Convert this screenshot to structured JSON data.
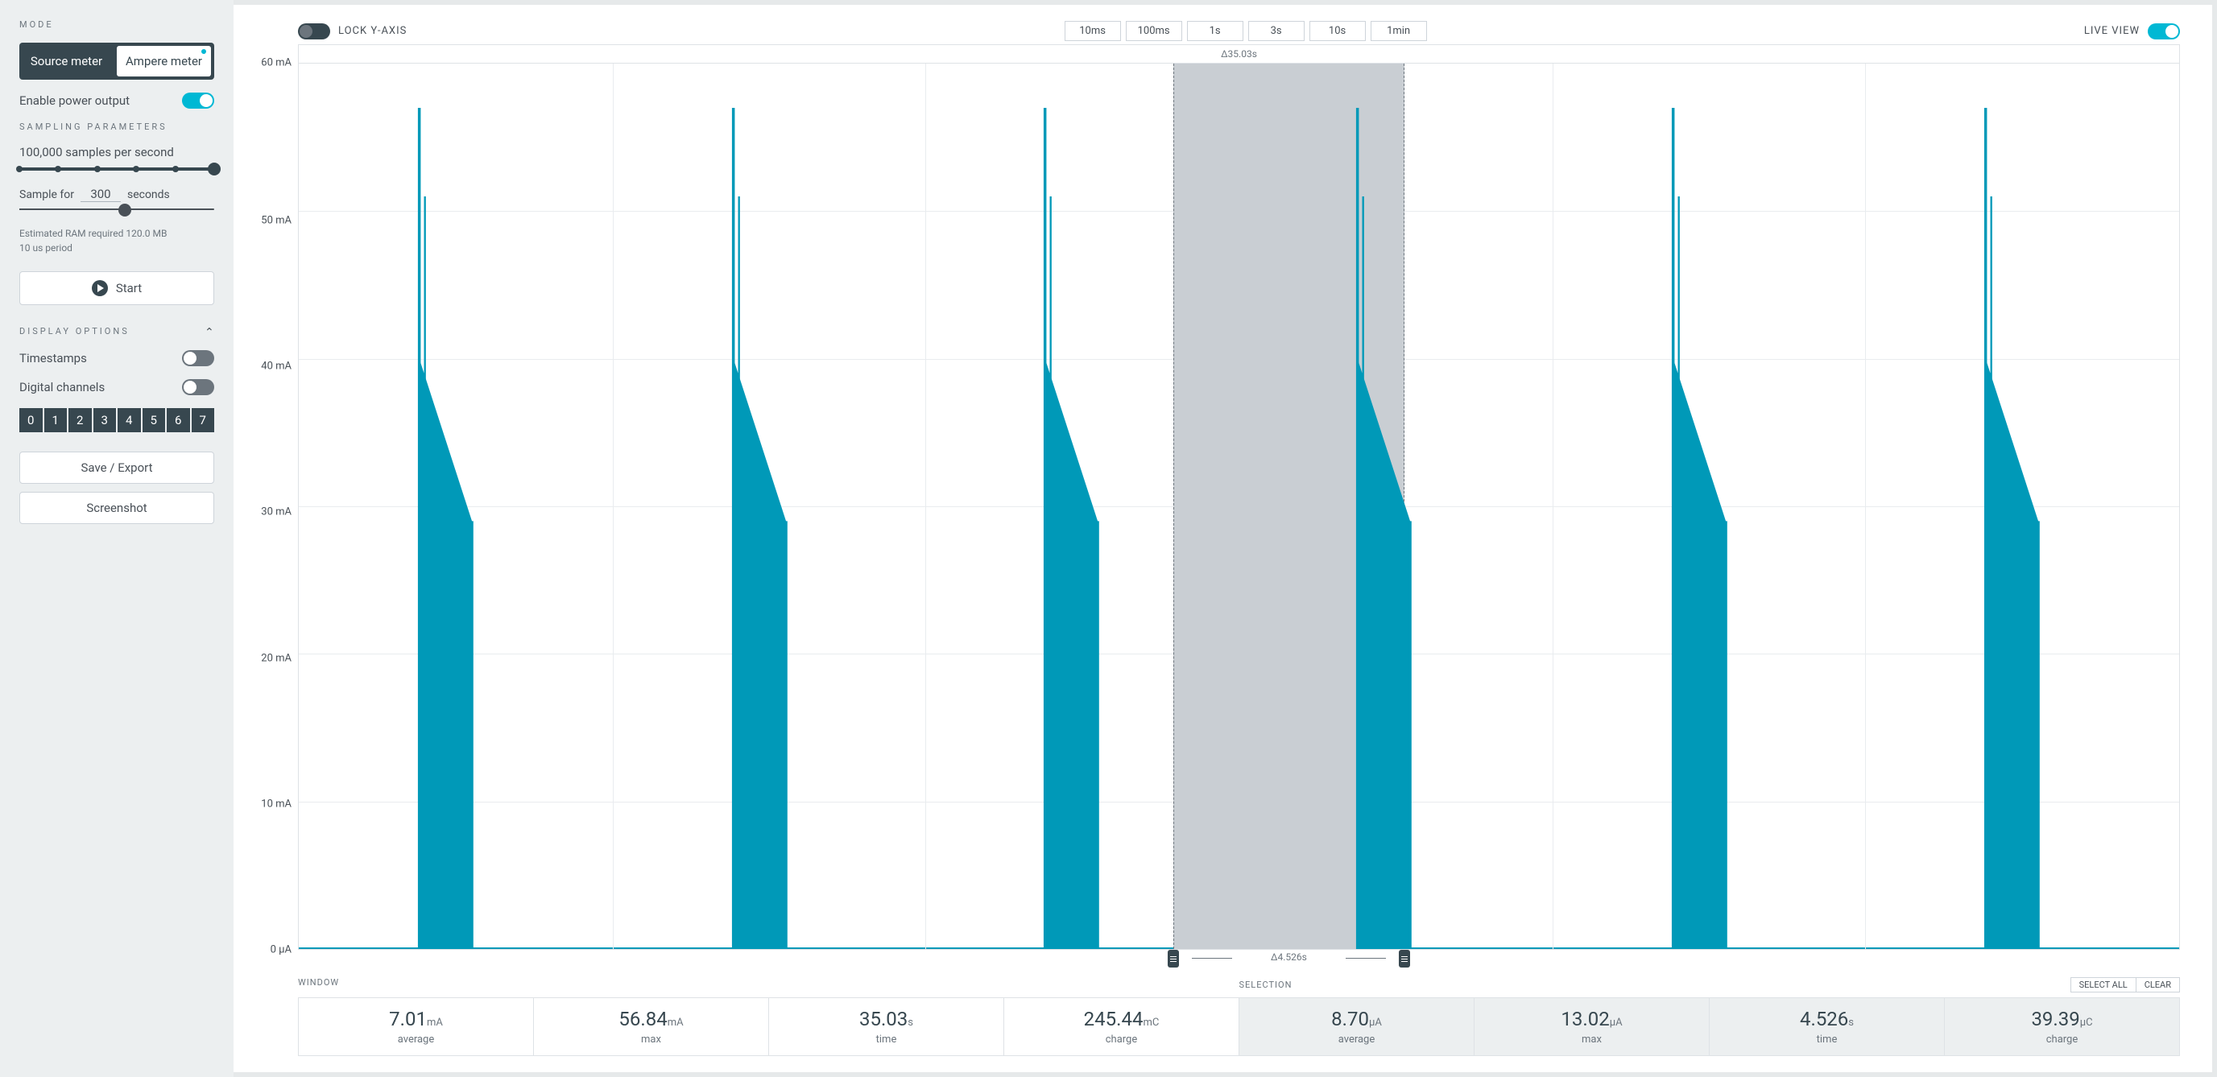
{
  "sidebar": {
    "mode": {
      "title": "MODE",
      "source_label": "Source meter",
      "ampere_label": "Ampere meter",
      "active": "ampere"
    },
    "enable_power": {
      "label": "Enable power output",
      "on": true
    },
    "sampling": {
      "title": "SAMPLING PARAMETERS",
      "rate_label": "100,000 samples per second",
      "slider_ticks": [
        0,
        20,
        40,
        60,
        80,
        100
      ],
      "slider_pos": 100,
      "sample_for_prefix": "Sample for",
      "sample_for_value": "300",
      "sample_for_suffix": "seconds",
      "duration_slider_pos": 54,
      "hint1": "Estimated RAM required 120.0 MB",
      "hint2": "10 us period",
      "start_label": "Start"
    },
    "display": {
      "title": "DISPLAY OPTIONS",
      "timestamps_label": "Timestamps",
      "timestamps_on": false,
      "digital_label": "Digital channels",
      "digital_on": false,
      "channels": [
        "0",
        "1",
        "2",
        "3",
        "4",
        "5",
        "6",
        "7"
      ]
    },
    "save_label": "Save / Export",
    "screenshot_label": "Screenshot"
  },
  "toolbar": {
    "lock_label": "LOCK Y-AXIS",
    "lock_on": false,
    "time_buttons": [
      "10ms",
      "100ms",
      "1s",
      "3s",
      "10s",
      "1min"
    ],
    "live_label": "LIVE VIEW",
    "live_on": true
  },
  "chart": {
    "delta_top": "Δ35.03s",
    "y_ticks": [
      "60 mA",
      "50 mA",
      "40 mA",
      "30 mA",
      "20 mA",
      "10 mA",
      "0 µA"
    ],
    "y_max_ma": 60,
    "grid_v_pct": [
      16.7,
      33.3,
      50.0,
      66.7,
      83.3
    ],
    "spike_positions_pct": [
      6.2,
      22.9,
      39.5,
      56.1,
      72.9,
      89.5
    ],
    "spike_peak_ma": 57,
    "spike_body_top_ma": 40,
    "spike_body_end_ma": 29,
    "spike_secondary_peak_ma": 51,
    "spike_color": "#0099b8",
    "selection": {
      "start_pct": 46.5,
      "end_pct": 58.8,
      "delta_label": "Δ4.526s"
    }
  },
  "stats": {
    "window_title": "WINDOW",
    "selection_title": "SELECTION",
    "select_all_label": "SELECT ALL",
    "clear_label": "CLEAR",
    "window": [
      {
        "v": "7.01",
        "u": "mA",
        "l": "average"
      },
      {
        "v": "56.84",
        "u": "mA",
        "l": "max"
      },
      {
        "v": "35.03",
        "u": "s",
        "l": "time"
      },
      {
        "v": "245.44",
        "u": "mC",
        "l": "charge"
      }
    ],
    "selection": [
      {
        "v": "8.70",
        "u": "µA",
        "l": "average"
      },
      {
        "v": "13.02",
        "u": "µA",
        "l": "max"
      },
      {
        "v": "4.526",
        "u": "s",
        "l": "time"
      },
      {
        "v": "39.39",
        "u": "µC",
        "l": "charge"
      }
    ]
  }
}
